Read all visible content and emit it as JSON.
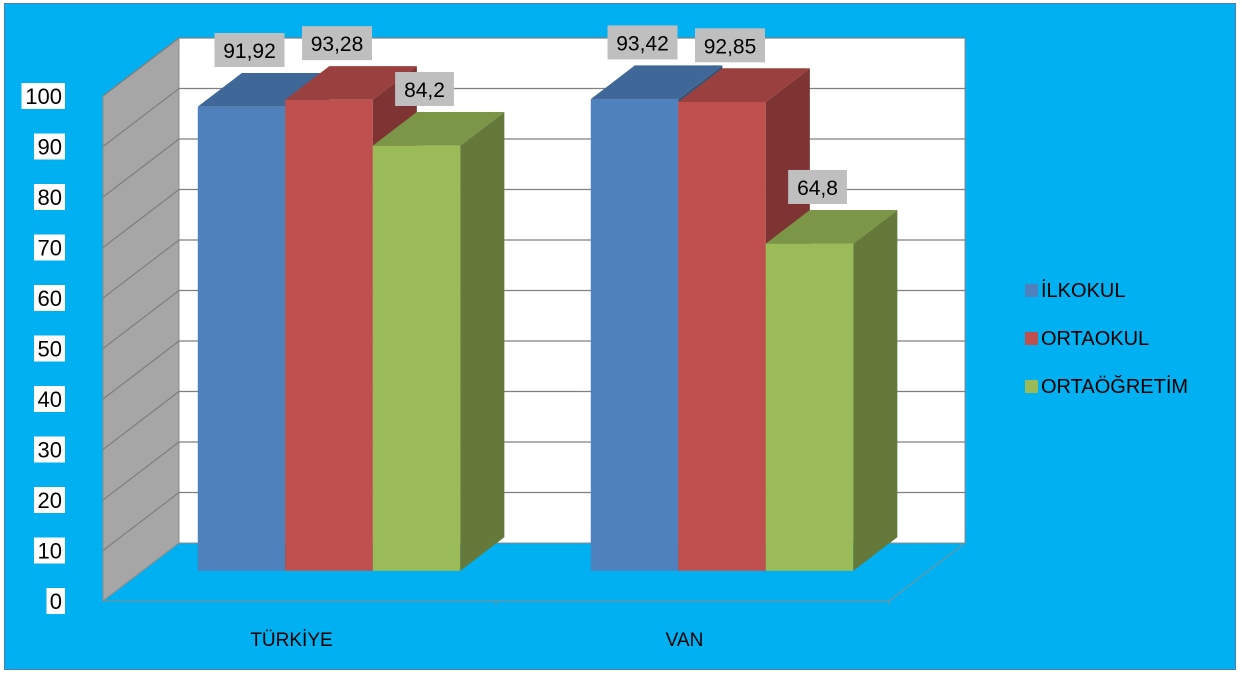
{
  "chart_data": {
    "type": "bar",
    "categories": [
      "TÜRKİYE",
      "VAN"
    ],
    "series": [
      {
        "name": "İLKOKUL",
        "values": [
          91.92,
          93.42
        ],
        "labels": [
          "91,92",
          "93,42"
        ],
        "color": "#4f81bd"
      },
      {
        "name": "ORTAOKUL",
        "values": [
          93.28,
          92.85
        ],
        "labels": [
          "93,28",
          "92,85"
        ],
        "color": "#c0504d"
      },
      {
        "name": "ORTAÖĞRETİM",
        "values": [
          84.2,
          64.8
        ],
        "labels": [
          "84,2",
          "64,8"
        ],
        "color": "#9bbb59"
      }
    ],
    "ylim": [
      0,
      100
    ],
    "yticks": [
      "0",
      "10",
      "20",
      "30",
      "40",
      "50",
      "60",
      "70",
      "80",
      "90",
      "100"
    ],
    "legend": "right",
    "grid": true,
    "background_color": "#00b0f0",
    "title": "",
    "xlabel": "",
    "ylabel": ""
  }
}
